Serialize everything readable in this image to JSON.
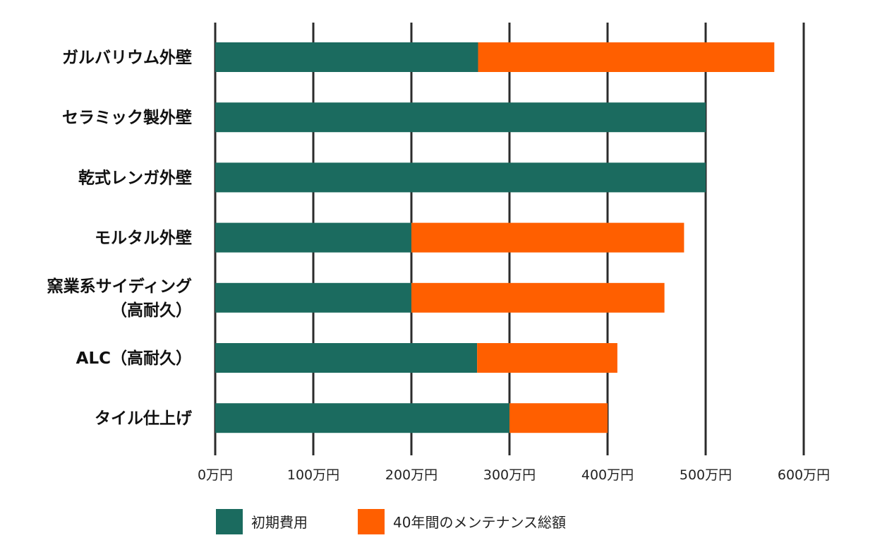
{
  "chart_data": {
    "type": "bar",
    "orientation": "horizontal",
    "stacked": true,
    "categories": [
      [
        "ガルバリウム外壁"
      ],
      [
        "セラミック製外壁"
      ],
      [
        "乾式レンガ外壁"
      ],
      [
        "モルタル外壁"
      ],
      [
        "窯業系サイディング",
        "（高耐久）"
      ],
      [
        "ALC（高耐久）"
      ],
      [
        "タイル仕上げ"
      ]
    ],
    "series": [
      {
        "name": "初期費用",
        "color": "#1b6b5f",
        "values": [
          268,
          500,
          500,
          200,
          200,
          267,
          300
        ]
      },
      {
        "name": "40年間のメンテナンス総額",
        "color": "#ff5f00",
        "values": [
          302,
          0,
          0,
          278,
          258,
          143,
          100
        ]
      }
    ],
    "x_ticks": [
      "0万円",
      "100万円",
      "200万円",
      "300万円",
      "400万円",
      "500万円",
      "600万円"
    ],
    "xlim": [
      0,
      600
    ],
    "grid": "vertical",
    "legend_position": "bottom"
  }
}
